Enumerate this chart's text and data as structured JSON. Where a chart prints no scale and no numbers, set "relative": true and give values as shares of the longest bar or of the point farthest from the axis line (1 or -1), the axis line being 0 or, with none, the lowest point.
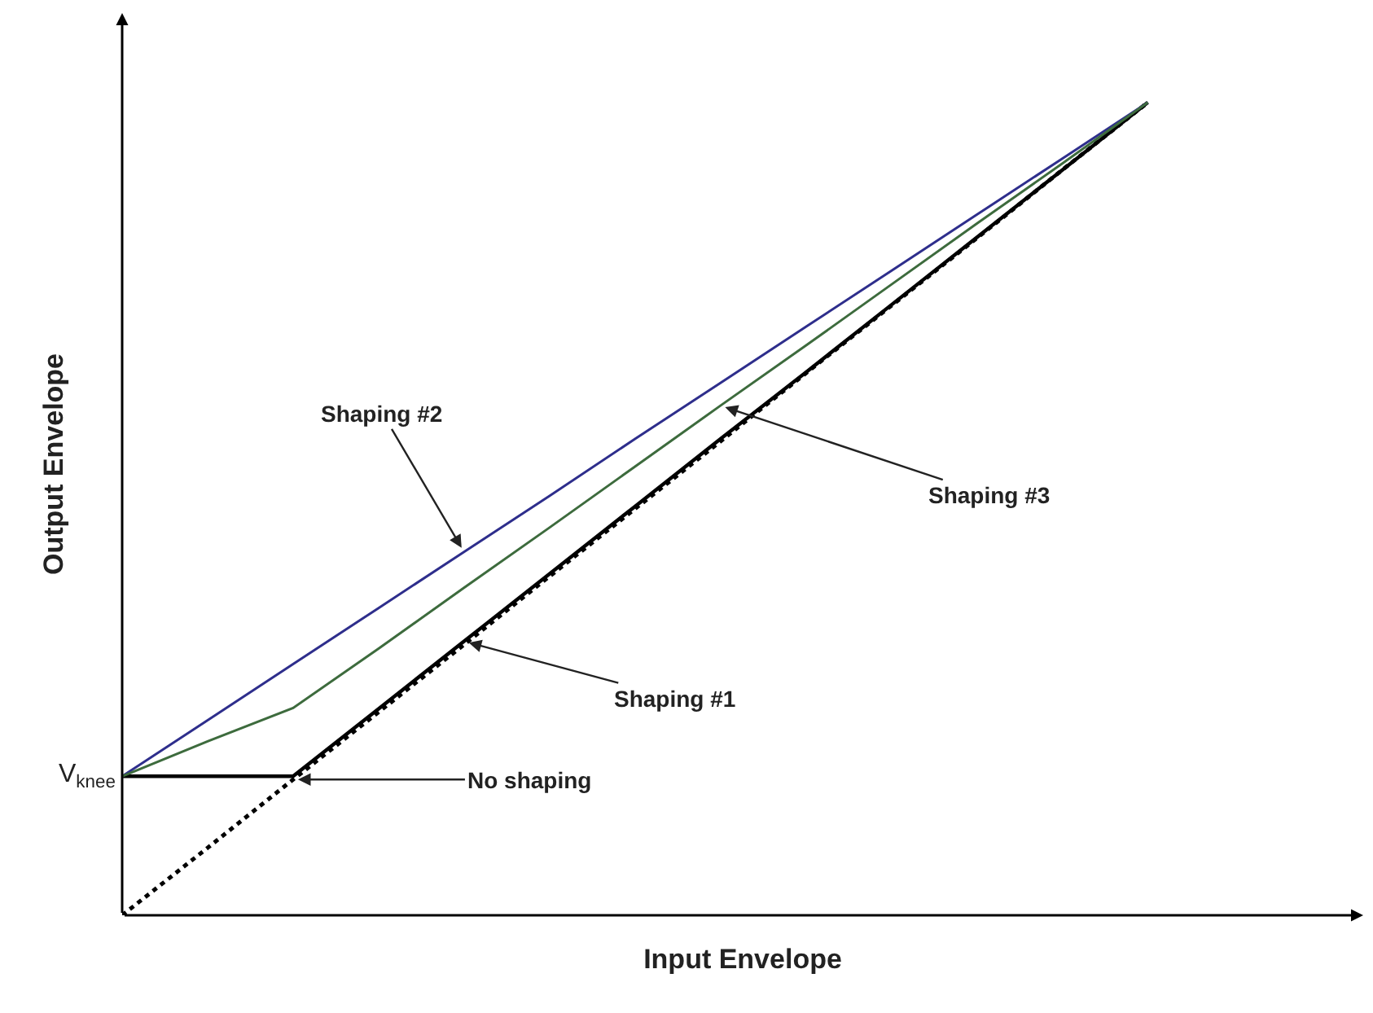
{
  "chart_data": {
    "type": "line",
    "relative": true,
    "xlabel": "Input Envelope",
    "ylabel": "Output Envelope",
    "marker": "none",
    "categories": [
      null,
      null,
      null,
      null,
      null,
      null,
      null,
      null,
      null,
      null,
      null,
      null,
      null
    ],
    "series": [
      {
        "color": "#000000",
        "line_style": "dotted",
        "values": [
          0.0,
          0.083,
          0.167,
          0.25,
          0.333,
          0.417,
          0.5,
          0.583,
          0.667,
          0.75,
          0.833,
          0.917,
          1
        ]
      },
      {
        "color": "#000000",
        "line_style": "solid",
        "values": [
          0.171,
          0.171,
          0.171,
          0.254,
          0.337,
          0.42,
          0.503,
          0.586,
          0.668,
          0.751,
          0.834,
          0.917,
          1
        ]
      },
      {
        "color": "#2e2e8c",
        "line_style": "solid",
        "values": [
          0.171,
          0.24,
          0.309,
          0.378,
          0.447,
          0.516,
          0.586,
          0.655,
          0.724,
          0.793,
          0.862,
          0.931,
          1
        ]
      },
      {
        "color": "#3d6b3d",
        "line_style": "solid",
        "values": [
          0.171,
          0.214,
          0.255,
          0.328,
          0.403,
          0.477,
          0.552,
          0.627,
          0.701,
          0.776,
          0.851,
          0.925,
          1
        ]
      }
    ],
    "annotations": [
      "V$_{knee}$",
      "Shaping #2",
      "Shaping #3",
      "Shaping #1",
      "No shaping"
    ]
  }
}
